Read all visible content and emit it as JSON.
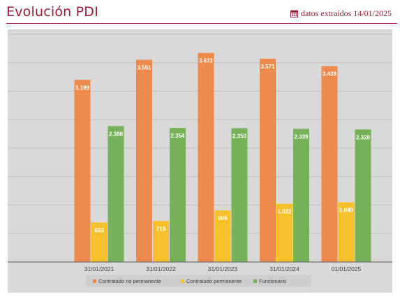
{
  "header": {
    "title": "Evolución PDI",
    "extract_label": "datos extraídos 14/01/2025",
    "icon": "calendar-icon",
    "color": "#9b1b3a"
  },
  "chart_data": {
    "type": "bar",
    "categories": [
      "31/01/2021",
      "31/01/2022",
      "31/01/2023",
      "31/01/2024",
      "01/01/2025"
    ],
    "series": [
      {
        "name": "Contratado no permanente",
        "color": "#ee8b4c",
        "values": [
          3199,
          3551,
          3672,
          3571,
          3439
        ],
        "labels": [
          "3.199",
          "3.551",
          "3.672",
          "3.571",
          "3.439"
        ]
      },
      {
        "name": "Contratado permanente",
        "color": "#f7c12c",
        "values": [
          693,
          719,
          906,
          1022,
          1049
        ],
        "labels": [
          "693",
          "719",
          "906",
          "1.022",
          "1.049"
        ]
      },
      {
        "name": "Funcionario",
        "color": "#77b25a",
        "values": [
          2388,
          2354,
          2350,
          2339,
          2328
        ],
        "labels": [
          "2.388",
          "2.354",
          "2.350",
          "2.339",
          "2.328"
        ]
      }
    ],
    "ylim": [
      0,
      4000
    ],
    "y_tick_step": 500,
    "y_tick_labels_shown": false,
    "grid": true,
    "legend_position": "bottom",
    "background": "#d9d9d9"
  }
}
